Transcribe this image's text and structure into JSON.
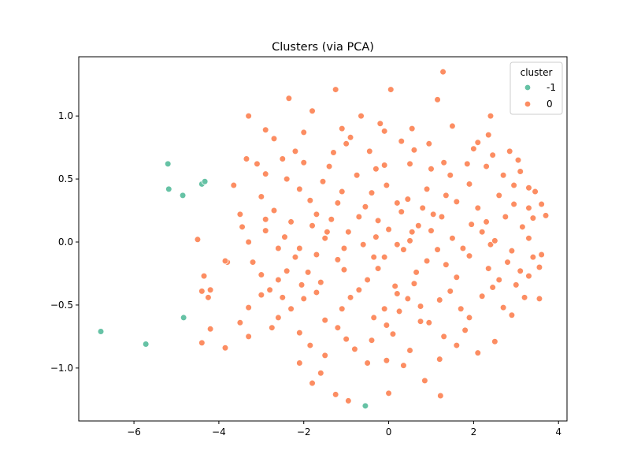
{
  "chart_data": {
    "type": "scatter",
    "title": "Clusters (via PCA)",
    "xlabel": "",
    "ylabel": "",
    "xlim": [
      -7.3,
      4.2
    ],
    "ylim": [
      -1.42,
      1.47
    ],
    "x_ticks": [
      -6,
      -4,
      -2,
      0,
      2,
      4
    ],
    "y_ticks": [
      -1.0,
      -0.5,
      0.0,
      0.5,
      1.0
    ],
    "x_tick_labels": [
      "−6",
      "−4",
      "−2",
      "0",
      "2",
      "4"
    ],
    "y_tick_labels": [
      "−1.0",
      "−0.5",
      "0.0",
      "0.5",
      "1.0"
    ],
    "grid": false,
    "legend": {
      "title": "cluster",
      "placement": "top-right",
      "entries": [
        {
          "label": "-1",
          "color": "#66c2a5"
        },
        {
          "label": "0",
          "color": "#fc8d62"
        }
      ]
    },
    "series": [
      {
        "name": "-1",
        "color": "#66c2a5",
        "points": [
          [
            -6.78,
            -0.71
          ],
          [
            -5.72,
            -0.81
          ],
          [
            -5.2,
            0.62
          ],
          [
            -5.18,
            0.42
          ],
          [
            -4.85,
            0.37
          ],
          [
            -4.83,
            -0.6
          ],
          [
            -4.4,
            0.46
          ],
          [
            -4.33,
            0.48
          ],
          [
            -0.55,
            -1.3
          ]
        ]
      },
      {
        "name": "0",
        "color": "#fc8d62",
        "points": [
          [
            1.28,
            1.35
          ],
          [
            -1.25,
            1.21
          ],
          [
            0.05,
            1.21
          ],
          [
            1.15,
            1.13
          ],
          [
            -2.35,
            1.14
          ],
          [
            -1.8,
            1.04
          ],
          [
            -3.3,
            1.0
          ],
          [
            -0.65,
            1.0
          ],
          [
            2.4,
            1.0
          ],
          [
            -2.7,
            0.82
          ],
          [
            -2.9,
            0.89
          ],
          [
            -2.0,
            0.87
          ],
          [
            -1.1,
            0.9
          ],
          [
            -0.2,
            0.94
          ],
          [
            0.55,
            0.9
          ],
          [
            1.5,
            0.92
          ],
          [
            2.35,
            0.85
          ],
          [
            -2.2,
            0.72
          ],
          [
            -1.0,
            0.78
          ],
          [
            0.95,
            0.78
          ],
          [
            2.0,
            0.74
          ],
          [
            2.85,
            0.72
          ],
          [
            -3.35,
            0.66
          ],
          [
            -2.5,
            0.66
          ],
          [
            -1.4,
            0.6
          ],
          [
            -0.3,
            0.58
          ],
          [
            0.5,
            0.62
          ],
          [
            1.3,
            0.63
          ],
          [
            2.3,
            0.6
          ],
          [
            3.05,
            0.65
          ],
          [
            -3.65,
            0.45
          ],
          [
            -3.0,
            0.36
          ],
          [
            -2.1,
            0.42
          ],
          [
            -1.1,
            0.4
          ],
          [
            -0.05,
            0.45
          ],
          [
            0.9,
            0.42
          ],
          [
            1.9,
            0.46
          ],
          [
            2.95,
            0.45
          ],
          [
            3.6,
            0.3
          ],
          [
            -3.5,
            0.22
          ],
          [
            -2.7,
            0.25
          ],
          [
            -1.7,
            0.22
          ],
          [
            -0.7,
            0.2
          ],
          [
            0.3,
            0.24
          ],
          [
            1.25,
            0.2
          ],
          [
            2.3,
            0.16
          ],
          [
            3.4,
            0.19
          ],
          [
            3.7,
            0.21
          ],
          [
            -3.3,
            0.0
          ],
          [
            -2.45,
            0.04
          ],
          [
            -1.5,
            0.03
          ],
          [
            -0.6,
            -0.02
          ],
          [
            0.5,
            0.01
          ],
          [
            1.5,
            0.03
          ],
          [
            2.4,
            -0.02
          ],
          [
            3.3,
            0.03
          ],
          [
            -3.2,
            -0.16
          ],
          [
            -2.2,
            -0.12
          ],
          [
            -1.2,
            -0.14
          ],
          [
            -0.1,
            -0.12
          ],
          [
            0.9,
            -0.15
          ],
          [
            1.9,
            -0.11
          ],
          [
            2.8,
            -0.16
          ],
          [
            3.4,
            -0.12
          ],
          [
            -3.8,
            -0.16
          ],
          [
            -2.6,
            -0.3
          ],
          [
            -1.6,
            -0.32
          ],
          [
            -0.5,
            -0.3
          ],
          [
            0.6,
            -0.33
          ],
          [
            1.6,
            -0.28
          ],
          [
            2.6,
            -0.3
          ],
          [
            3.55,
            -0.2
          ],
          [
            -3.0,
            -0.42
          ],
          [
            -2.0,
            -0.45
          ],
          [
            -0.9,
            -0.44
          ],
          [
            0.2,
            -0.41
          ],
          [
            1.2,
            -0.46
          ],
          [
            2.2,
            -0.43
          ],
          [
            3.2,
            -0.44
          ],
          [
            -2.6,
            -0.6
          ],
          [
            -1.5,
            -0.62
          ],
          [
            -0.35,
            -0.6
          ],
          [
            0.75,
            -0.63
          ],
          [
            1.9,
            -0.6
          ],
          [
            2.9,
            -0.58
          ],
          [
            -3.3,
            -0.75
          ],
          [
            -2.1,
            -0.72
          ],
          [
            -1.0,
            -0.77
          ],
          [
            0.1,
            -0.73
          ],
          [
            1.3,
            -0.75
          ],
          [
            2.5,
            -0.79
          ],
          [
            -2.1,
            -0.96
          ],
          [
            -1.5,
            -0.9
          ],
          [
            -0.5,
            -0.96
          ],
          [
            0.35,
            -0.98
          ],
          [
            1.2,
            -0.93
          ],
          [
            -1.6,
            -1.04
          ],
          [
            -0.05,
            -0.94
          ],
          [
            -1.8,
            -1.12
          ],
          [
            -1.25,
            -1.21
          ],
          [
            -0.95,
            -1.26
          ],
          [
            0.0,
            -1.2
          ],
          [
            0.85,
            -1.1
          ],
          [
            1.22,
            -1.22
          ],
          [
            -4.5,
            0.02
          ],
          [
            -4.35,
            -0.27
          ],
          [
            -4.2,
            -0.38
          ],
          [
            -4.4,
            -0.39
          ],
          [
            -4.25,
            -0.44
          ],
          [
            -4.2,
            -0.69
          ],
          [
            -4.4,
            -0.8
          ],
          [
            -3.85,
            -0.84
          ],
          [
            -3.85,
            -0.15
          ],
          [
            -3.5,
            -0.64
          ],
          [
            -3.3,
            -0.52
          ],
          [
            -2.8,
            -0.38
          ],
          [
            -2.4,
            -0.23
          ],
          [
            -2.1,
            -0.05
          ],
          [
            -1.8,
            0.13
          ],
          [
            -1.2,
            0.31
          ],
          [
            -0.4,
            0.39
          ],
          [
            0.45,
            0.34
          ],
          [
            1.6,
            0.32
          ],
          [
            2.6,
            0.37
          ],
          [
            3.3,
            0.43
          ],
          [
            3.55,
            -0.45
          ],
          [
            3.3,
            -0.27
          ],
          [
            2.9,
            -0.07
          ],
          [
            2.2,
            0.08
          ],
          [
            1.0,
            0.09
          ],
          [
            0.0,
            0.1
          ],
          [
            -0.95,
            0.08
          ],
          [
            -2.3,
            0.16
          ],
          [
            -2.9,
            0.09
          ],
          [
            -3.0,
            -0.26
          ],
          [
            -1.9,
            -0.24
          ],
          [
            -1.05,
            -0.22
          ],
          [
            -0.25,
            -0.21
          ],
          [
            0.65,
            -0.24
          ],
          [
            1.35,
            -0.18
          ],
          [
            2.35,
            -0.21
          ],
          [
            3.0,
            -0.34
          ],
          [
            2.7,
            -0.52
          ],
          [
            1.7,
            -0.53
          ],
          [
            0.75,
            -0.51
          ],
          [
            -0.1,
            -0.53
          ],
          [
            -1.1,
            -0.53
          ],
          [
            -2.3,
            -0.53
          ],
          [
            -2.75,
            -0.68
          ],
          [
            -1.85,
            -0.82
          ],
          [
            -0.8,
            -0.85
          ],
          [
            0.5,
            -0.86
          ],
          [
            1.6,
            -0.82
          ],
          [
            2.1,
            -0.88
          ],
          [
            1.8,
            -0.7
          ],
          [
            0.95,
            -0.64
          ],
          [
            -0.05,
            -0.66
          ],
          [
            -1.2,
            -0.68
          ],
          [
            -0.4,
            -0.78
          ],
          [
            0.25,
            -0.55
          ],
          [
            0.15,
            -0.35
          ],
          [
            0.35,
            -0.06
          ],
          [
            0.7,
            0.13
          ],
          [
            0.2,
            0.31
          ],
          [
            -0.1,
            0.61
          ],
          [
            0.3,
            0.8
          ],
          [
            -0.45,
            0.72
          ],
          [
            -0.75,
            0.53
          ],
          [
            -1.55,
            0.48
          ],
          [
            -1.85,
            0.33
          ],
          [
            -2.4,
            0.5
          ],
          [
            -2.9,
            0.54
          ],
          [
            -3.1,
            0.62
          ],
          [
            -2.0,
            0.63
          ],
          [
            -1.3,
            0.71
          ],
          [
            -0.9,
            0.83
          ],
          [
            -0.1,
            0.88
          ],
          [
            0.6,
            0.73
          ],
          [
            1.0,
            0.58
          ],
          [
            1.45,
            0.53
          ],
          [
            1.85,
            0.62
          ],
          [
            2.1,
            0.79
          ],
          [
            2.45,
            0.69
          ],
          [
            2.7,
            0.53
          ],
          [
            3.1,
            0.56
          ],
          [
            3.45,
            0.4
          ],
          [
            2.95,
            0.3
          ],
          [
            2.1,
            0.27
          ],
          [
            1.35,
            0.37
          ],
          [
            0.8,
            0.27
          ],
          [
            -0.25,
            0.17
          ],
          [
            -0.55,
            0.28
          ],
          [
            -1.45,
            0.08
          ],
          [
            -2.05,
            -0.34
          ],
          [
            -2.5,
            -0.44
          ],
          [
            -1.7,
            -0.4
          ],
          [
            -0.7,
            -0.38
          ],
          [
            0.45,
            -0.45
          ],
          [
            1.45,
            -0.39
          ],
          [
            2.45,
            -0.36
          ],
          [
            3.1,
            -0.23
          ],
          [
            3.6,
            -0.1
          ],
          [
            3.15,
            0.12
          ],
          [
            2.5,
            0.01
          ],
          [
            1.75,
            -0.05
          ],
          [
            1.15,
            -0.06
          ],
          [
            0.2,
            -0.02
          ],
          [
            -0.3,
            0.04
          ],
          [
            -1.05,
            -0.05
          ],
          [
            -1.7,
            -0.1
          ],
          [
            -2.6,
            -0.05
          ],
          [
            -3.45,
            0.12
          ],
          [
            -2.9,
            0.18
          ],
          [
            -1.35,
            0.18
          ],
          [
            -0.35,
            -0.12
          ],
          [
            0.55,
            0.08
          ],
          [
            1.05,
            0.22
          ],
          [
            1.95,
            0.14
          ],
          [
            2.75,
            0.2
          ],
          [
            3.3,
            0.27
          ]
        ]
      }
    ]
  }
}
